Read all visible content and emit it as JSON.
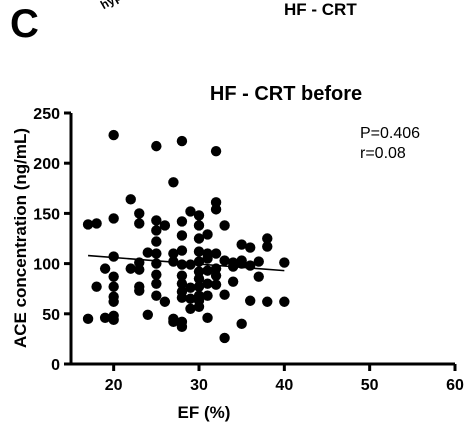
{
  "panel_label": "C",
  "cropped_heading_left": "hyp",
  "cropped_heading_right": "HF - CRT",
  "chart_data": {
    "type": "scatter",
    "title": "HF - CRT before",
    "xlabel": "EF (%)",
    "ylabel": "ACE concentration (ng/mL)",
    "xlim": [
      15,
      60
    ],
    "ylim": [
      0,
      250
    ],
    "x_ticks": [
      20,
      30,
      40,
      50,
      60
    ],
    "y_ticks": [
      0,
      50,
      100,
      150,
      200,
      250
    ],
    "grid": false,
    "annotations": [
      "P=0.406",
      "r=0.08"
    ],
    "trendline": {
      "x": [
        17,
        40
      ],
      "y": [
        108,
        93
      ]
    },
    "points": [
      [
        17,
        139
      ],
      [
        17,
        45
      ],
      [
        18,
        140
      ],
      [
        18,
        77
      ],
      [
        19,
        95
      ],
      [
        19,
        46
      ],
      [
        20,
        228
      ],
      [
        20,
        145
      ],
      [
        20,
        107
      ],
      [
        20,
        87
      ],
      [
        20,
        77
      ],
      [
        20,
        67
      ],
      [
        20,
        62
      ],
      [
        20,
        48
      ],
      [
        20,
        44
      ],
      [
        22,
        164
      ],
      [
        22,
        95
      ],
      [
        23,
        150
      ],
      [
        23,
        140
      ],
      [
        23,
        101
      ],
      [
        23,
        94
      ],
      [
        23,
        77
      ],
      [
        23,
        73
      ],
      [
        24,
        111
      ],
      [
        24,
        49
      ],
      [
        25,
        217
      ],
      [
        25,
        143
      ],
      [
        25,
        133
      ],
      [
        25,
        122
      ],
      [
        25,
        110
      ],
      [
        25,
        100
      ],
      [
        25,
        89
      ],
      [
        25,
        80
      ],
      [
        25,
        68
      ],
      [
        26,
        138
      ],
      [
        26,
        62
      ],
      [
        27,
        181
      ],
      [
        27,
        110
      ],
      [
        27,
        102
      ],
      [
        27,
        45
      ],
      [
        27,
        42
      ],
      [
        28,
        222
      ],
      [
        28,
        142
      ],
      [
        28,
        128
      ],
      [
        28,
        113
      ],
      [
        28,
        99
      ],
      [
        28,
        88
      ],
      [
        28,
        80
      ],
      [
        28,
        72
      ],
      [
        28,
        66
      ],
      [
        28,
        42
      ],
      [
        28,
        37
      ],
      [
        29,
        152
      ],
      [
        29,
        99
      ],
      [
        29,
        76
      ],
      [
        29,
        65
      ],
      [
        29,
        55
      ],
      [
        30,
        148
      ],
      [
        30,
        138
      ],
      [
        30,
        125
      ],
      [
        30,
        112
      ],
      [
        30,
        102
      ],
      [
        30,
        92
      ],
      [
        30,
        85
      ],
      [
        30,
        77
      ],
      [
        30,
        68
      ],
      [
        30,
        63
      ],
      [
        30,
        57
      ],
      [
        31,
        129
      ],
      [
        31,
        110
      ],
      [
        31,
        105
      ],
      [
        31,
        93
      ],
      [
        31,
        80
      ],
      [
        31,
        68
      ],
      [
        31,
        46
      ],
      [
        32,
        212
      ],
      [
        32,
        161
      ],
      [
        32,
        154
      ],
      [
        32,
        110
      ],
      [
        32,
        95
      ],
      [
        32,
        88
      ],
      [
        32,
        79
      ],
      [
        33,
        138
      ],
      [
        33,
        103
      ],
      [
        33,
        69
      ],
      [
        33,
        26
      ],
      [
        34,
        101
      ],
      [
        34,
        97
      ],
      [
        34,
        82
      ],
      [
        35,
        100
      ],
      [
        35,
        119
      ],
      [
        35,
        103
      ],
      [
        35,
        40
      ],
      [
        36,
        116
      ],
      [
        36,
        98
      ],
      [
        36,
        63
      ],
      [
        37,
        102
      ],
      [
        37,
        87
      ],
      [
        38,
        125
      ],
      [
        38,
        117
      ],
      [
        38,
        62
      ],
      [
        40,
        101
      ],
      [
        40,
        62
      ]
    ]
  }
}
